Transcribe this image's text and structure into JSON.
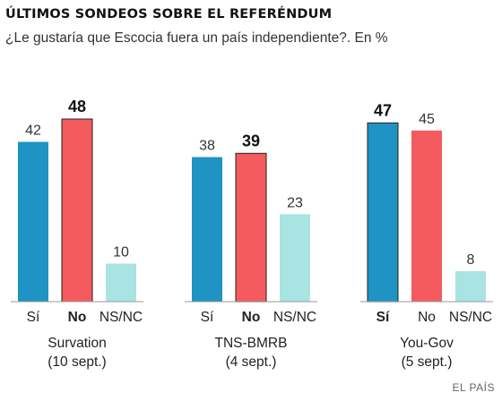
{
  "header": {
    "title": "ÚLTIMOS SONDEOS SOBRE EL REFERÉNDUM",
    "subtitle": "¿Le gustaría que Escocia fuera un país independiente?. En %"
  },
  "source": "EL PAÍS",
  "colors": {
    "si": "#1f93c4",
    "no": "#f45b5e",
    "nsnc": "#a9e4e3",
    "baseline": "#999999"
  },
  "chart_data": {
    "type": "bar",
    "title": "ÚLTIMOS SONDEOS SOBRE EL REFERÉNDUM",
    "subtitle": "¿Le gustaría que Escocia fuera un país independiente?. En %",
    "categories": [
      "Sí",
      "No",
      "NS/NC"
    ],
    "ylim": [
      0,
      50
    ],
    "grid": false,
    "groups": [
      {
        "pollster": "Survation",
        "date": "(10 sept.)",
        "values": [
          42,
          48,
          10
        ],
        "winner": 1
      },
      {
        "pollster": "TNS-BMRB",
        "date": "(4 sept.)",
        "values": [
          38,
          39,
          23
        ],
        "winner": 1
      },
      {
        "pollster": "You-Gov",
        "date": "(5 sept.)",
        "values": [
          47,
          45,
          8
        ],
        "winner": 0
      }
    ]
  }
}
